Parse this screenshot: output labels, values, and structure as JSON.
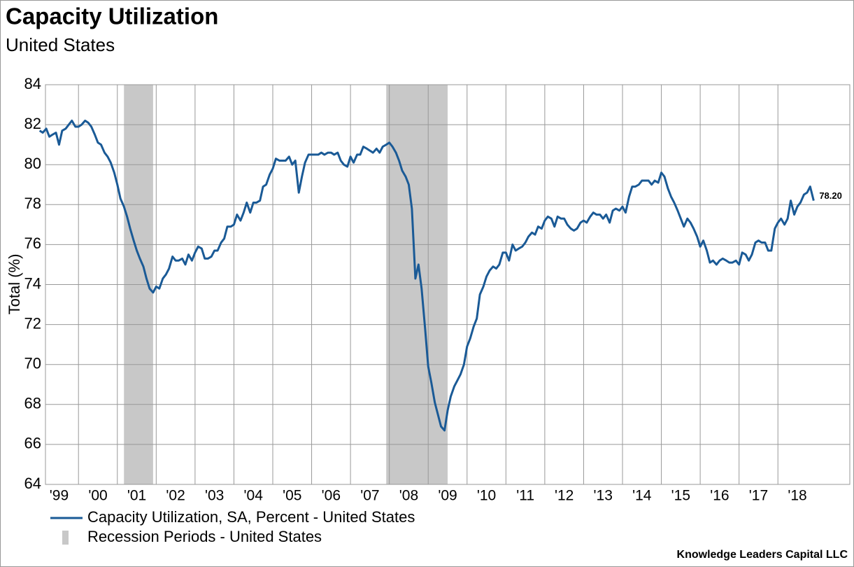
{
  "chart_data": {
    "type": "line",
    "title": "Capacity Utilization",
    "subtitle": "United States",
    "y_label": "Total (%)",
    "source": "Knowledge Leaders Capital LLC",
    "xlim": [
      1999.15,
      2019.85
    ],
    "ylim": [
      64,
      84
    ],
    "yticks": [
      64,
      66,
      68,
      70,
      72,
      74,
      76,
      78,
      80,
      82,
      84
    ],
    "xticks": [
      {
        "value": 1999,
        "label": "'99"
      },
      {
        "value": 2000,
        "label": "'00"
      },
      {
        "value": 2001,
        "label": "'01"
      },
      {
        "value": 2002,
        "label": "'02"
      },
      {
        "value": 2003,
        "label": "'03"
      },
      {
        "value": 2004,
        "label": "'04"
      },
      {
        "value": 2005,
        "label": "'05"
      },
      {
        "value": 2006,
        "label": "'06"
      },
      {
        "value": 2007,
        "label": "'07"
      },
      {
        "value": 2008,
        "label": "'08"
      },
      {
        "value": 2009,
        "label": "'09"
      },
      {
        "value": 2010,
        "label": "'10"
      },
      {
        "value": 2011,
        "label": "'11"
      },
      {
        "value": 2012,
        "label": "'12"
      },
      {
        "value": 2013,
        "label": "'13"
      },
      {
        "value": 2014,
        "label": "'14"
      },
      {
        "value": 2015,
        "label": "'15"
      },
      {
        "value": 2016,
        "label": "'16"
      },
      {
        "value": 2017,
        "label": "'17"
      },
      {
        "value": 2018,
        "label": "'18"
      }
    ],
    "grid": true,
    "recessions": {
      "name": "Recession Periods - United States",
      "color": "#c8c8c8",
      "periods": [
        [
          2001.17,
          2001.92
        ],
        [
          2007.92,
          2009.5
        ]
      ]
    },
    "x": [
      1999.0,
      1999.08,
      1999.17,
      1999.25,
      1999.33,
      1999.42,
      1999.5,
      1999.58,
      1999.67,
      1999.75,
      1999.83,
      1999.92,
      2000.0,
      2000.08,
      2000.17,
      2000.25,
      2000.33,
      2000.42,
      2000.5,
      2000.58,
      2000.67,
      2000.75,
      2000.83,
      2000.92,
      2001.0,
      2001.08,
      2001.17,
      2001.25,
      2001.33,
      2001.42,
      2001.5,
      2001.58,
      2001.67,
      2001.75,
      2001.83,
      2001.92,
      2002.0,
      2002.08,
      2002.17,
      2002.25,
      2002.33,
      2002.42,
      2002.5,
      2002.58,
      2002.67,
      2002.75,
      2002.83,
      2002.92,
      2003.0,
      2003.08,
      2003.17,
      2003.25,
      2003.33,
      2003.42,
      2003.5,
      2003.58,
      2003.67,
      2003.75,
      2003.83,
      2003.92,
      2004.0,
      2004.08,
      2004.17,
      2004.25,
      2004.33,
      2004.42,
      2004.5,
      2004.58,
      2004.67,
      2004.75,
      2004.83,
      2004.92,
      2005.0,
      2005.08,
      2005.17,
      2005.25,
      2005.33,
      2005.42,
      2005.5,
      2005.58,
      2005.67,
      2005.75,
      2005.83,
      2005.92,
      2006.0,
      2006.08,
      2006.17,
      2006.25,
      2006.33,
      2006.42,
      2006.5,
      2006.58,
      2006.67,
      2006.75,
      2006.83,
      2006.92,
      2007.0,
      2007.08,
      2007.17,
      2007.25,
      2007.33,
      2007.42,
      2007.5,
      2007.58,
      2007.67,
      2007.75,
      2007.83,
      2007.92,
      2008.0,
      2008.08,
      2008.17,
      2008.25,
      2008.33,
      2008.42,
      2008.5,
      2008.58,
      2008.67,
      2008.75,
      2008.83,
      2008.92,
      2009.0,
      2009.08,
      2009.17,
      2009.25,
      2009.33,
      2009.42,
      2009.5,
      2009.58,
      2009.67,
      2009.75,
      2009.83,
      2009.92,
      2010.0,
      2010.08,
      2010.17,
      2010.25,
      2010.33,
      2010.42,
      2010.5,
      2010.58,
      2010.67,
      2010.75,
      2010.83,
      2010.92,
      2011.0,
      2011.08,
      2011.17,
      2011.25,
      2011.33,
      2011.42,
      2011.5,
      2011.58,
      2011.67,
      2011.75,
      2011.83,
      2011.92,
      2012.0,
      2012.08,
      2012.17,
      2012.25,
      2012.33,
      2012.42,
      2012.5,
      2012.58,
      2012.67,
      2012.75,
      2012.83,
      2012.92,
      2013.0,
      2013.08,
      2013.17,
      2013.25,
      2013.33,
      2013.42,
      2013.5,
      2013.58,
      2013.67,
      2013.75,
      2013.83,
      2013.92,
      2014.0,
      2014.08,
      2014.17,
      2014.25,
      2014.33,
      2014.42,
      2014.5,
      2014.58,
      2014.67,
      2014.75,
      2014.83,
      2014.92,
      2015.0,
      2015.08,
      2015.17,
      2015.25,
      2015.33,
      2015.42,
      2015.5,
      2015.58,
      2015.67,
      2015.75,
      2015.83,
      2015.92,
      2016.0,
      2016.08,
      2016.17,
      2016.25,
      2016.33,
      2016.42,
      2016.5,
      2016.58,
      2016.67,
      2016.75,
      2016.83,
      2016.92,
      2017.0,
      2017.08,
      2017.17,
      2017.25,
      2017.33,
      2017.42,
      2017.5,
      2017.58,
      2017.67,
      2017.75,
      2017.83,
      2017.92,
      2018.0,
      2018.08,
      2018.17,
      2018.25,
      2018.33,
      2018.42,
      2018.5,
      2018.58,
      2018.67,
      2018.75,
      2018.83,
      2018.92
    ],
    "series": [
      {
        "name": "Capacity Utilization, SA, Percent - United States",
        "color": "#1a5a96",
        "values": [
          81.7,
          81.6,
          81.8,
          81.4,
          81.5,
          81.6,
          81.0,
          81.7,
          81.8,
          82.0,
          82.2,
          81.9,
          81.9,
          82.0,
          82.2,
          82.1,
          81.9,
          81.5,
          81.1,
          81.0,
          80.6,
          80.4,
          80.1,
          79.6,
          79.0,
          78.3,
          77.9,
          77.4,
          76.8,
          76.2,
          75.7,
          75.3,
          74.9,
          74.3,
          73.8,
          73.6,
          73.9,
          73.8,
          74.3,
          74.5,
          74.8,
          75.4,
          75.2,
          75.2,
          75.3,
          75.0,
          75.5,
          75.2,
          75.6,
          75.9,
          75.8,
          75.3,
          75.3,
          75.4,
          75.7,
          75.7,
          76.1,
          76.3,
          76.9,
          76.9,
          77.0,
          77.5,
          77.2,
          77.6,
          78.1,
          77.6,
          78.1,
          78.1,
          78.2,
          78.9,
          79.0,
          79.5,
          79.8,
          80.3,
          80.2,
          80.2,
          80.2,
          80.4,
          80.0,
          80.2,
          78.6,
          79.4,
          80.1,
          80.5,
          80.5,
          80.5,
          80.5,
          80.6,
          80.5,
          80.6,
          80.6,
          80.5,
          80.6,
          80.2,
          80.0,
          79.9,
          80.4,
          80.1,
          80.5,
          80.5,
          80.9,
          80.8,
          80.7,
          80.6,
          80.8,
          80.6,
          80.9,
          81.0,
          81.1,
          80.9,
          80.6,
          80.2,
          79.7,
          79.4,
          79.0,
          77.8,
          74.3,
          75.0,
          73.8,
          71.8,
          69.9,
          69.1,
          68.1,
          67.5,
          66.9,
          66.7,
          67.7,
          68.4,
          68.9,
          69.2,
          69.5,
          70.0,
          70.9,
          71.3,
          71.9,
          72.3,
          73.5,
          73.9,
          74.4,
          74.7,
          74.9,
          74.8,
          75.0,
          75.6,
          75.6,
          75.2,
          76.0,
          75.7,
          75.8,
          75.9,
          76.1,
          76.4,
          76.6,
          76.5,
          76.9,
          76.8,
          77.2,
          77.4,
          77.3,
          76.9,
          77.4,
          77.3,
          77.3,
          77.0,
          76.8,
          76.7,
          76.8,
          77.1,
          77.2,
          77.1,
          77.4,
          77.6,
          77.5,
          77.5,
          77.3,
          77.5,
          77.1,
          77.7,
          77.8,
          77.7,
          77.9,
          77.6,
          78.4,
          78.9,
          78.9,
          79.0,
          79.2,
          79.2,
          79.2,
          79.0,
          79.2,
          79.1,
          79.6,
          79.4,
          78.8,
          78.4,
          78.1,
          77.7,
          77.3,
          76.9,
          77.3,
          77.1,
          76.8,
          76.4,
          75.9,
          76.2,
          75.7,
          75.1,
          75.2,
          75.0,
          75.2,
          75.3,
          75.2,
          75.1,
          75.1,
          75.2,
          75.0,
          75.6,
          75.5,
          75.2,
          75.5,
          76.1,
          76.2,
          76.1,
          76.1,
          75.7,
          75.7,
          76.8,
          77.1,
          77.3,
          77.0,
          77.3,
          78.2,
          77.5,
          77.9,
          78.1,
          78.5,
          78.6,
          78.9,
          78.2
        ],
        "end_label": "78.20"
      }
    ]
  }
}
